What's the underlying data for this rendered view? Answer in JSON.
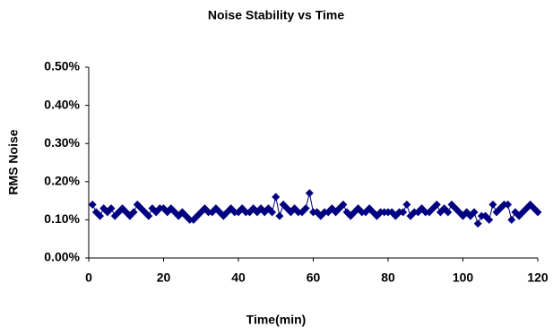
{
  "chart_data": {
    "type": "line",
    "title": "Noise Stability vs Time",
    "x_label": "Time(min)",
    "y_label": "RMS Noise",
    "color": "#000080",
    "grid": false,
    "x": [
      1,
      2,
      3,
      4,
      5,
      6,
      7,
      8,
      9,
      10,
      11,
      12,
      13,
      14,
      15,
      16,
      17,
      18,
      19,
      20,
      21,
      22,
      23,
      24,
      25,
      26,
      27,
      28,
      29,
      30,
      31,
      32,
      33,
      34,
      35,
      36,
      37,
      38,
      39,
      40,
      41,
      42,
      43,
      44,
      45,
      46,
      47,
      48,
      49,
      50,
      51,
      52,
      53,
      54,
      55,
      56,
      57,
      58,
      59,
      60,
      61,
      62,
      63,
      64,
      65,
      66,
      67,
      68,
      69,
      70,
      71,
      72,
      73,
      74,
      75,
      76,
      77,
      78,
      79,
      80,
      81,
      82,
      83,
      84,
      85,
      86,
      87,
      88,
      89,
      90,
      91,
      92,
      93,
      94,
      95,
      96,
      97,
      98,
      99,
      100,
      101,
      102,
      103,
      104,
      105,
      106,
      107,
      108,
      109,
      110,
      111,
      112,
      113,
      114,
      115,
      116,
      117,
      118,
      119,
      120
    ],
    "values": [
      0.14,
      0.12,
      0.11,
      0.13,
      0.12,
      0.13,
      0.11,
      0.12,
      0.13,
      0.12,
      0.11,
      0.12,
      0.14,
      0.13,
      0.12,
      0.11,
      0.13,
      0.12,
      0.13,
      0.13,
      0.12,
      0.13,
      0.12,
      0.11,
      0.12,
      0.11,
      0.1,
      0.1,
      0.11,
      0.12,
      0.13,
      0.12,
      0.12,
      0.13,
      0.12,
      0.11,
      0.12,
      0.13,
      0.12,
      0.12,
      0.13,
      0.12,
      0.12,
      0.13,
      0.12,
      0.13,
      0.12,
      0.13,
      0.12,
      0.16,
      0.11,
      0.14,
      0.13,
      0.12,
      0.13,
      0.12,
      0.12,
      0.13,
      0.17,
      0.12,
      0.12,
      0.11,
      0.12,
      0.12,
      0.13,
      0.12,
      0.13,
      0.14,
      0.12,
      0.11,
      0.12,
      0.13,
      0.12,
      0.12,
      0.13,
      0.12,
      0.11,
      0.12,
      0.12,
      0.12,
      0.12,
      0.11,
      0.12,
      0.12,
      0.14,
      0.11,
      0.12,
      0.12,
      0.13,
      0.12,
      0.12,
      0.13,
      0.14,
      0.12,
      0.13,
      0.12,
      0.14,
      0.13,
      0.12,
      0.11,
      0.12,
      0.11,
      0.12,
      0.09,
      0.11,
      0.11,
      0.1,
      0.14,
      0.12,
      0.13,
      0.14,
      0.14,
      0.1,
      0.12,
      0.11,
      0.12,
      0.13,
      0.14,
      0.13,
      0.12
    ],
    "xlim": [
      0,
      120
    ],
    "xticks": [
      0,
      20,
      40,
      60,
      80,
      100,
      120
    ],
    "ylim": [
      0,
      0.5
    ],
    "yticks": [
      {
        "value": 0,
        "label": "0.00%"
      },
      {
        "value": 0.1,
        "label": "0.10%"
      },
      {
        "value": 0.2,
        "label": "0.20%"
      },
      {
        "value": 0.3,
        "label": "0.30%"
      },
      {
        "value": 0.4,
        "label": "0.40%"
      },
      {
        "value": 0.5,
        "label": "0.50%"
      }
    ]
  }
}
